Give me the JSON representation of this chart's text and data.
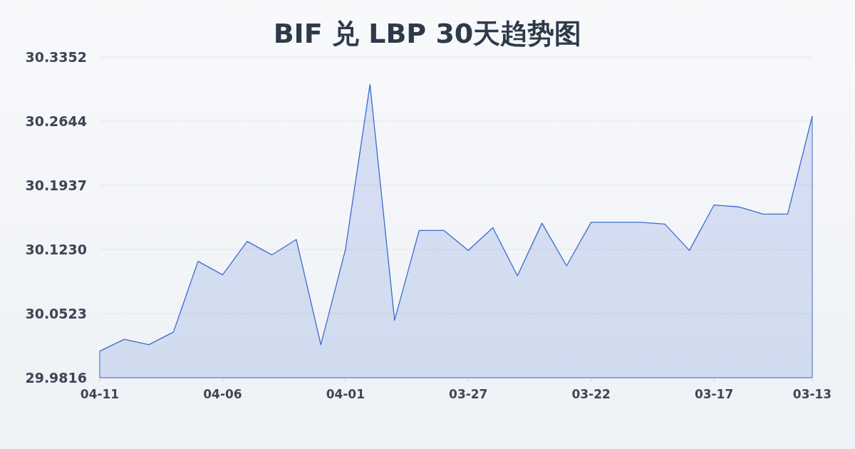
{
  "chart_data": {
    "type": "area",
    "title": "BIF 兑 LBP 30天趋势图",
    "categories": [
      "04-11",
      null,
      null,
      null,
      null,
      "04-06",
      null,
      null,
      null,
      null,
      "04-01",
      null,
      null,
      null,
      null,
      "03-27",
      null,
      null,
      null,
      null,
      "03-22",
      null,
      null,
      null,
      null,
      "03-17",
      null,
      null,
      null,
      "03-13"
    ],
    "values": [
      30.011,
      30.024,
      30.018,
      30.032,
      30.11,
      30.095,
      30.132,
      30.117,
      30.134,
      30.018,
      30.123,
      30.305,
      30.045,
      30.144,
      30.144,
      30.122,
      30.147,
      30.094,
      30.152,
      30.105,
      30.153,
      30.153,
      30.153,
      30.151,
      30.122,
      30.172,
      30.17,
      30.162,
      30.162,
      30.27
    ],
    "color": "#3a6bd0",
    "ylim": [
      29.9816,
      30.3352
    ],
    "yticks": [
      29.9816,
      30.0523,
      {
        "value": 30.123,
        "label": "30.1230"
      },
      30.1937,
      30.2644,
      30.3352
    ],
    "grid": "y"
  }
}
